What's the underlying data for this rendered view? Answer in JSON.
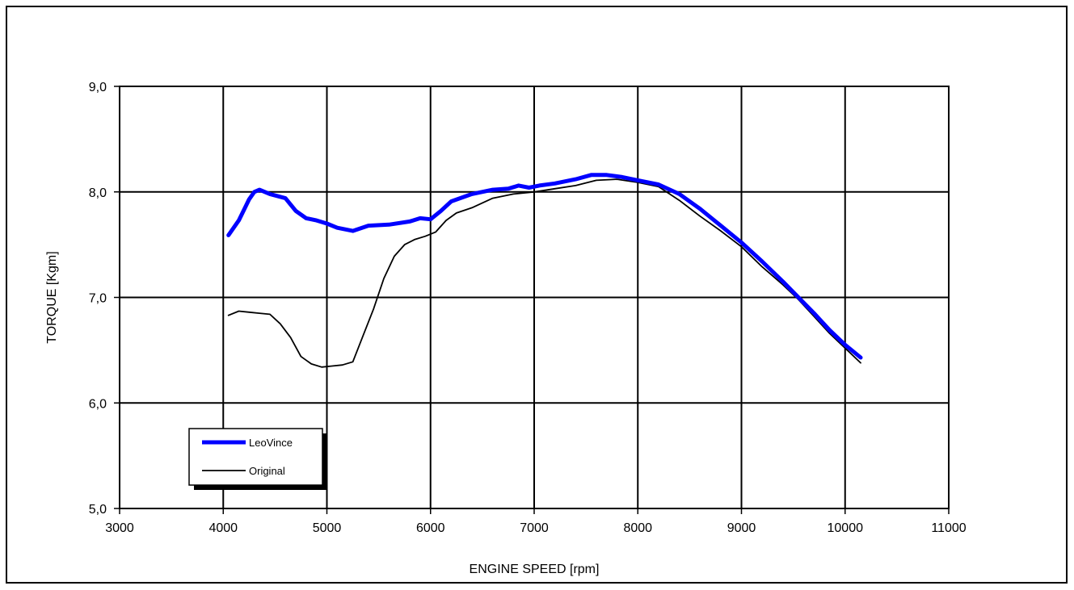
{
  "chart_data": {
    "type": "line",
    "title": "",
    "xlabel": "ENGINE SPEED [rpm]",
    "ylabel": "TORQUE [Kgm]",
    "xlim": [
      3000,
      11000
    ],
    "ylim": [
      5.0,
      9.0
    ],
    "x_ticks": [
      "3000",
      "4000",
      "5000",
      "6000",
      "7000",
      "8000",
      "9000",
      "10000",
      "11000"
    ],
    "y_ticks": [
      "5,0",
      "6,0",
      "7,0",
      "8,0",
      "9,0"
    ],
    "grid": true,
    "legend_position": "bottom-left",
    "series": [
      {
        "name": "LeoVince",
        "color": "#0000ff",
        "x": [
          4050,
          4150,
          4250,
          4300,
          4350,
          4450,
          4600,
          4700,
          4800,
          4900,
          5000,
          5100,
          5250,
          5400,
          5600,
          5800,
          5900,
          6000,
          6100,
          6200,
          6400,
          6600,
          6750,
          6850,
          6950,
          7050,
          7200,
          7400,
          7550,
          7700,
          7850,
          8000,
          8200,
          8400,
          8600,
          8800,
          9000,
          9200,
          9400,
          9550,
          9700,
          9850,
          10000,
          10150
        ],
        "y": [
          7.59,
          7.73,
          7.93,
          8.0,
          8.02,
          7.98,
          7.94,
          7.82,
          7.75,
          7.73,
          7.7,
          7.66,
          7.63,
          7.68,
          7.69,
          7.72,
          7.75,
          7.74,
          7.82,
          7.91,
          7.98,
          8.02,
          8.03,
          8.06,
          8.04,
          8.06,
          8.08,
          8.12,
          8.16,
          8.16,
          8.14,
          8.11,
          8.07,
          7.98,
          7.84,
          7.68,
          7.52,
          7.34,
          7.15,
          7.0,
          6.85,
          6.69,
          6.55,
          6.43
        ]
      },
      {
        "name": "Original",
        "color": "#000000",
        "x": [
          4050,
          4150,
          4250,
          4350,
          4450,
          4550,
          4650,
          4750,
          4850,
          4950,
          5050,
          5150,
          5250,
          5350,
          5450,
          5550,
          5650,
          5750,
          5850,
          5950,
          6050,
          6150,
          6250,
          6400,
          6600,
          6800,
          7000,
          7200,
          7400,
          7600,
          7800,
          8000,
          8200,
          8400,
          8600,
          8800,
          9000,
          9200,
          9400,
          9550,
          9700,
          9850,
          10000,
          10150
        ],
        "y": [
          6.83,
          6.87,
          6.86,
          6.85,
          6.84,
          6.75,
          6.62,
          6.44,
          6.37,
          6.34,
          6.35,
          6.36,
          6.39,
          6.64,
          6.89,
          7.18,
          7.39,
          7.5,
          7.55,
          7.58,
          7.62,
          7.73,
          7.8,
          7.85,
          7.94,
          7.98,
          8.0,
          8.03,
          8.06,
          8.11,
          8.12,
          8.09,
          8.05,
          7.92,
          7.77,
          7.63,
          7.48,
          7.29,
          7.12,
          6.98,
          6.82,
          6.66,
          6.52,
          6.38
        ]
      }
    ]
  }
}
